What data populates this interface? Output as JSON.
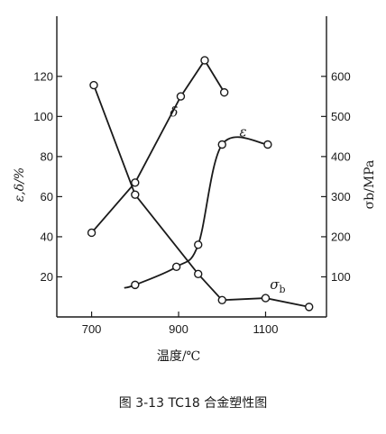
{
  "caption": "图 3-13    TC18 合金塑性图",
  "chart_data": {
    "type": "line",
    "xlabel": "温度/℃",
    "ylabel_left": "ε,δ/%",
    "ylabel_right": "σb/MPa",
    "xlim": [
      620,
      1240
    ],
    "ylim_left": [
      0,
      150
    ],
    "ylim_right": [
      0,
      750
    ],
    "x_ticks": [
      700,
      900,
      1100
    ],
    "y_ticks_left": [
      20,
      40,
      60,
      80,
      100,
      120
    ],
    "y_ticks_right": [
      100,
      200,
      300,
      400,
      500,
      600
    ],
    "series": [
      {
        "name": "δ",
        "axis": "left",
        "x": [
          700,
          800,
          905,
          960,
          1005
        ],
        "values": [
          42,
          67,
          110,
          128,
          112
        ]
      },
      {
        "name": "ε",
        "axis": "left",
        "x": [
          800,
          895,
          945,
          1000,
          1105
        ],
        "values": [
          16,
          25,
          36,
          86,
          86
        ]
      },
      {
        "name": "σb",
        "axis": "right",
        "x": [
          705,
          800,
          945,
          1000,
          1100,
          1200
        ],
        "values": [
          578,
          305,
          107,
          42,
          47,
          25
        ]
      }
    ]
  }
}
